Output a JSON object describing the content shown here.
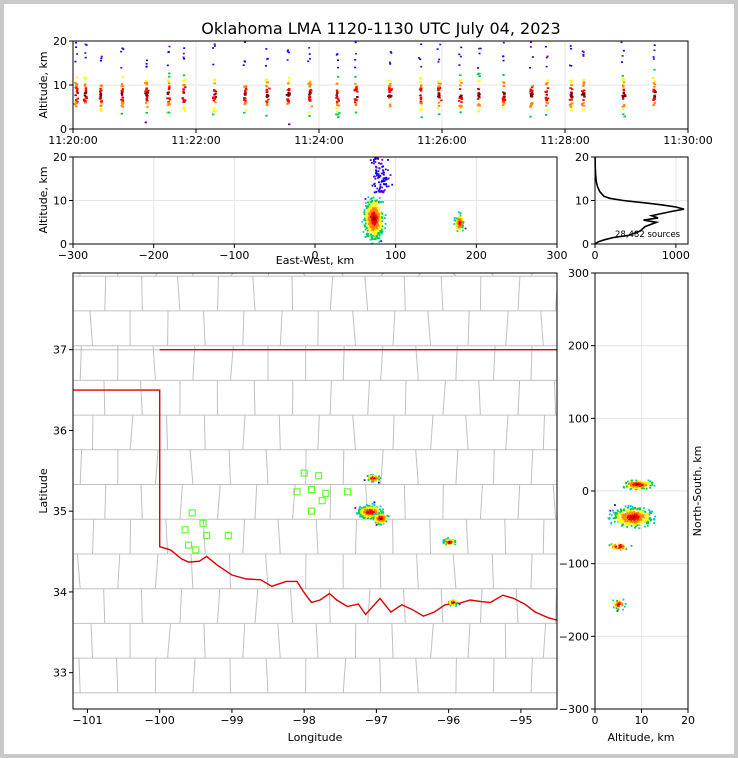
{
  "title": "Oklahoma LMA 1120-1130 UTC July 04, 2023",
  "chart_data": [
    {
      "panel": "time-altitude",
      "type": "scatter",
      "xlabel": "",
      "ylabel": "Altitude, km",
      "xlim": [
        "11:20:00",
        "11:30:00"
      ],
      "ylim": [
        0,
        20
      ],
      "xticks": [
        "11:20:00",
        "11:22:00",
        "11:24:00",
        "11:26:00",
        "11:28:00",
        "11:30:00"
      ],
      "yticks": [
        0,
        10,
        20
      ],
      "bursts_min": [
        0.05,
        0.2,
        0.45,
        0.8,
        1.2,
        1.55,
        1.8,
        2.3,
        2.8,
        3.15,
        3.5,
        3.85,
        4.3,
        4.6,
        5.15,
        5.65,
        5.95,
        6.3,
        6.6,
        7.0,
        7.45,
        7.7,
        8.1,
        8.3,
        8.95,
        9.45
      ]
    },
    {
      "panel": "east-west-altitude",
      "type": "scatter",
      "xlabel": "East-West, km",
      "ylabel": "Altitude, km",
      "xlim": [
        -300,
        300
      ],
      "ylim": [
        0,
        20
      ],
      "xticks": [
        -300,
        -200,
        -100,
        0,
        100,
        200,
        300
      ],
      "yticks": [
        0,
        10,
        20
      ],
      "clusters": [
        {
          "x": 72,
          "y": 6,
          "sx": 9,
          "sy": 3.5
        },
        {
          "x": 178,
          "y": 5,
          "sx": 4,
          "sy": 1.5
        }
      ]
    },
    {
      "panel": "altitude-histogram",
      "type": "line",
      "annotation": "28,482 sources",
      "xlim": [
        0,
        1150
      ],
      "ylim": [
        0,
        20
      ],
      "xticks": [
        0,
        1000
      ],
      "yticks": [
        0,
        10,
        20
      ],
      "altitude": [
        0,
        0.5,
        1,
        1.5,
        2,
        3,
        4,
        5,
        5.5,
        6,
        6.5,
        7,
        7.5,
        8,
        8.5,
        9,
        9.5,
        10,
        10.5,
        11,
        12,
        13,
        14,
        15,
        16,
        17,
        18,
        19,
        20
      ],
      "count": [
        0,
        40,
        120,
        230,
        420,
        560,
        620,
        760,
        600,
        780,
        700,
        820,
        950,
        1100,
        1000,
        820,
        600,
        350,
        180,
        110,
        60,
        35,
        20,
        12,
        8,
        5,
        3,
        2,
        1
      ]
    },
    {
      "panel": "plan-view",
      "type": "scatter",
      "xlabel": "Longitude",
      "ylabel": "Latitude",
      "xlim": [
        -101.2,
        -94.5
      ],
      "ylim": [
        32.55,
        37.95
      ],
      "xticks": [
        -101,
        -100,
        -99,
        -98,
        -97,
        -96,
        -95
      ],
      "yticks": [
        33,
        34,
        35,
        36,
        37
      ],
      "clusters": [
        {
          "lon": -97.1,
          "lat": 35.0,
          "slon": 0.12,
          "slat": 0.06
        },
        {
          "lon": -96.95,
          "lat": 34.92,
          "slon": 0.08,
          "slat": 0.05
        },
        {
          "lon": -97.05,
          "lat": 35.42,
          "slon": 0.08,
          "slat": 0.03
        },
        {
          "lon": -96.0,
          "lat": 34.63,
          "slon": 0.06,
          "slat": 0.03
        },
        {
          "lon": -95.95,
          "lat": 33.88,
          "slon": 0.05,
          "slat": 0.03
        }
      ],
      "stations": [
        [
          -99.55,
          34.98
        ],
        [
          -99.4,
          34.85
        ],
        [
          -99.65,
          34.77
        ],
        [
          -99.35,
          34.7
        ],
        [
          -99.05,
          34.7
        ],
        [
          -99.6,
          34.58
        ],
        [
          -99.5,
          34.52
        ],
        [
          -98.0,
          35.47
        ],
        [
          -97.8,
          35.44
        ],
        [
          -98.1,
          35.24
        ],
        [
          -97.9,
          35.27
        ],
        [
          -97.7,
          35.22
        ],
        [
          -97.4,
          35.24
        ],
        [
          -97.75,
          35.13
        ],
        [
          -97.9,
          35.0
        ]
      ]
    },
    {
      "panel": "altitude-north-south",
      "type": "scatter",
      "xlabel": "Altitude, km",
      "ylabel": "North-South, km",
      "xlim": [
        0,
        20
      ],
      "ylim": [
        -300,
        300
      ],
      "xticks": [
        0,
        10,
        20
      ],
      "yticks": [
        -300,
        -200,
        -100,
        0,
        100,
        200,
        300
      ],
      "clusters": [
        {
          "alt": 8,
          "ns": -35,
          "salt": 3.2,
          "sns": 10
        },
        {
          "alt": 9,
          "ns": 10,
          "salt": 2.5,
          "sns": 5
        },
        {
          "alt": 5,
          "ns": -75,
          "salt": 2,
          "sns": 4
        },
        {
          "alt": 5,
          "ns": -155,
          "salt": 1,
          "sns": 5
        }
      ]
    }
  ],
  "colors": {
    "state_border": "#dd0000",
    "county_line": "#c0c0c0",
    "station": "#66ff33",
    "grid": "#e6e6e6",
    "palette": [
      "#0000ff",
      "#6600cc",
      "#00cccc",
      "#00cc44",
      "#ffff00",
      "#ff8800",
      "#ff0000",
      "#800000"
    ]
  }
}
